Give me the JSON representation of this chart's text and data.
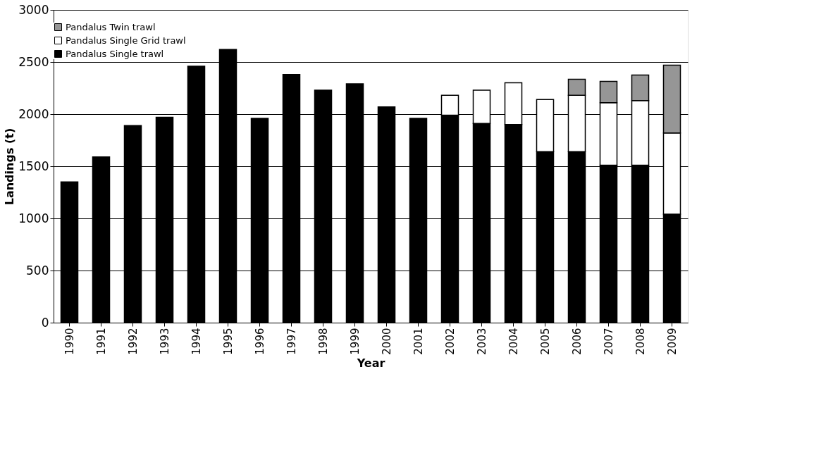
{
  "chart_data": {
    "type": "bar",
    "stacked": true,
    "xlabel": "Year",
    "ylabel": "Landings (t)",
    "categories": [
      "1990",
      "1991",
      "1992",
      "1993",
      "1994",
      "1995",
      "1996",
      "1997",
      "1998",
      "1999",
      "2000",
      "2001",
      "2002",
      "2003",
      "2004",
      "2005",
      "2006",
      "2007",
      "2008",
      "2009"
    ],
    "series": [
      {
        "name": "Pandalus Single trawl",
        "color": "#000000",
        "values": [
          1350,
          1590,
          1890,
          1970,
          2460,
          2620,
          1960,
          2380,
          2230,
          2290,
          2070,
          1960,
          1990,
          1910,
          1900,
          1640,
          1640,
          1510,
          1510,
          1040
        ]
      },
      {
        "name": "Pandalus Single Grid trawl",
        "color": "#ffffff",
        "values": [
          null,
          null,
          null,
          null,
          null,
          null,
          null,
          null,
          null,
          null,
          null,
          null,
          190,
          320,
          400,
          500,
          540,
          600,
          620,
          780
        ]
      },
      {
        "name": "Pandalus Twin trawl",
        "color": "#969696",
        "values": [
          null,
          null,
          null,
          null,
          null,
          null,
          null,
          null,
          null,
          null,
          null,
          null,
          null,
          null,
          null,
          null,
          155,
          205,
          245,
          650
        ]
      }
    ],
    "ylim": [
      0,
      3000
    ],
    "yticks": [
      0,
      500,
      1000,
      1500,
      2000,
      2500,
      3000
    ],
    "grid": "y",
    "legend": "top"
  }
}
